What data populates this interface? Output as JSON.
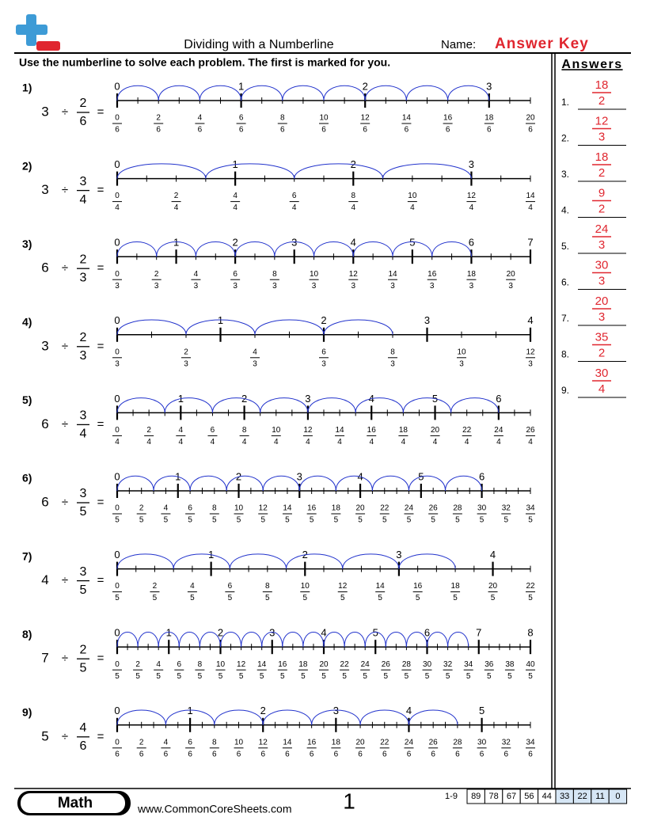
{
  "header": {
    "title": "Dividing with a Numberline",
    "name_label": "Name:",
    "answer_key": "Answer Key",
    "instructions": "Use the numberline to solve each problem. The first is marked for you.",
    "answers_title": "Answers"
  },
  "symbols": {
    "divide": "÷",
    "equals": "="
  },
  "problems": [
    {
      "label": "1)",
      "dividend": 3,
      "num": 2,
      "den": 6,
      "integers": [
        0,
        1,
        2,
        3
      ],
      "numerators": [
        0,
        2,
        4,
        6,
        8,
        10,
        12,
        14,
        16,
        18,
        20
      ],
      "denominator": 6
    },
    {
      "label": "2)",
      "dividend": 3,
      "num": 3,
      "den": 4,
      "integers": [
        0,
        1,
        2,
        3
      ],
      "numerators": [
        0,
        2,
        4,
        6,
        8,
        10,
        12,
        14
      ],
      "denominator": 4
    },
    {
      "label": "3)",
      "dividend": 6,
      "num": 2,
      "den": 3,
      "integers": [
        0,
        1,
        2,
        3,
        4,
        5,
        6,
        7
      ],
      "numerators": [
        0,
        2,
        4,
        6,
        8,
        10,
        12,
        14,
        16,
        18,
        20
      ],
      "denominator": 3
    },
    {
      "label": "4)",
      "dividend": 3,
      "num": 2,
      "den": 3,
      "integers": [
        0,
        1,
        2,
        3,
        4
      ],
      "numerators": [
        0,
        2,
        4,
        6,
        8,
        10,
        12
      ],
      "denominator": 3
    },
    {
      "label": "5)",
      "dividend": 6,
      "num": 3,
      "den": 4,
      "integers": [
        0,
        1,
        2,
        3,
        4,
        5,
        6
      ],
      "numerators": [
        0,
        2,
        4,
        6,
        8,
        10,
        12,
        14,
        16,
        18,
        20,
        22,
        24,
        26
      ],
      "denominator": 4
    },
    {
      "label": "6)",
      "dividend": 6,
      "num": 3,
      "den": 5,
      "integers": [
        0,
        1,
        2,
        3,
        4,
        5,
        6
      ],
      "numerators": [
        0,
        2,
        4,
        6,
        8,
        10,
        12,
        14,
        16,
        18,
        20,
        22,
        24,
        26,
        28,
        30,
        32,
        34
      ],
      "denominator": 5
    },
    {
      "label": "7)",
      "dividend": 4,
      "num": 3,
      "den": 5,
      "integers": [
        0,
        1,
        2,
        3,
        4
      ],
      "numerators": [
        0,
        2,
        4,
        6,
        8,
        10,
        12,
        14,
        16,
        18,
        20,
        22
      ],
      "denominator": 5
    },
    {
      "label": "8)",
      "dividend": 7,
      "num": 2,
      "den": 5,
      "integers": [
        0,
        1,
        2,
        3,
        4,
        5,
        6,
        7,
        8
      ],
      "numerators": [
        0,
        2,
        4,
        6,
        8,
        10,
        12,
        14,
        16,
        18,
        20,
        22,
        24,
        26,
        28,
        30,
        32,
        34,
        36,
        38,
        40
      ],
      "denominator": 5
    },
    {
      "label": "9)",
      "dividend": 5,
      "num": 4,
      "den": 6,
      "integers": [
        0,
        1,
        2,
        3,
        4,
        5
      ],
      "numerators": [
        0,
        2,
        4,
        6,
        8,
        10,
        12,
        14,
        16,
        18,
        20,
        22,
        24,
        26,
        28,
        30,
        32,
        34
      ],
      "denominator": 6
    }
  ],
  "answers": [
    {
      "label": "1.",
      "num": 18,
      "den": 2
    },
    {
      "label": "2.",
      "num": 12,
      "den": 3
    },
    {
      "label": "3.",
      "num": 18,
      "den": 2
    },
    {
      "label": "4.",
      "num": 9,
      "den": 2
    },
    {
      "label": "5.",
      "num": 24,
      "den": 3
    },
    {
      "label": "6.",
      "num": 30,
      "den": 3
    },
    {
      "label": "7.",
      "num": 20,
      "den": 3
    },
    {
      "label": "8.",
      "num": 35,
      "den": 2
    },
    {
      "label": "9.",
      "num": 30,
      "den": 4
    }
  ],
  "footer": {
    "subject": "Math",
    "website": "www.CommonCoreSheets.com",
    "page": 1,
    "range": "1-9",
    "scores": [
      89,
      78,
      67,
      56,
      44,
      33,
      22,
      11,
      0
    ]
  }
}
